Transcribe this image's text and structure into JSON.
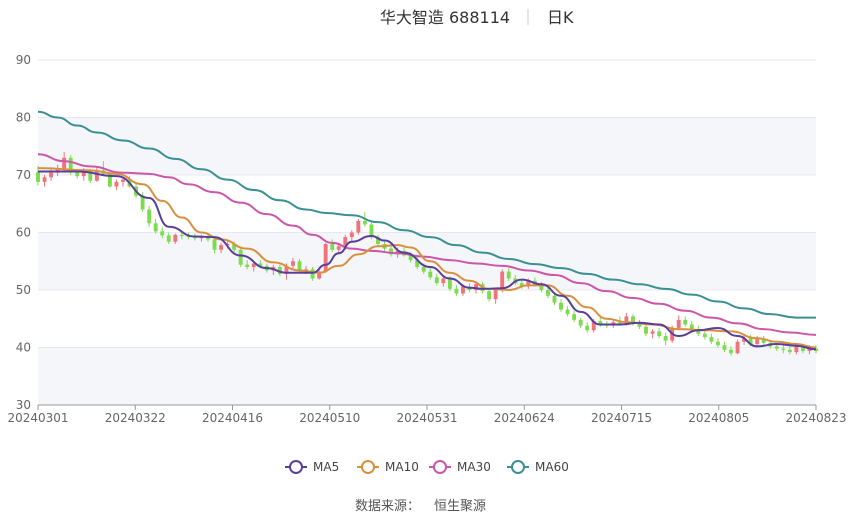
{
  "header": {
    "title": "华大智造 688114",
    "period": "日K"
  },
  "source": {
    "label": "数据来源：",
    "value": "恒生聚源"
  },
  "colors": {
    "up": "#f0737b",
    "down": "#7cdc4d",
    "grid": "#e6e9f0",
    "band": "#f5f6fa",
    "ma5": "#5a3e9b",
    "ma10": "#d8903f",
    "ma30": "#cc57a9",
    "ma60": "#3a9093"
  },
  "chart_data": {
    "type": "candlestick",
    "ylim": [
      30,
      90
    ],
    "yticks": [
      30,
      40,
      50,
      60,
      70,
      80,
      90
    ],
    "xtick_labels": [
      "20240301",
      "20240322",
      "20240416",
      "20240510",
      "20240531",
      "20240624",
      "20240715",
      "20240805",
      "20240823"
    ],
    "n_days": 120,
    "legend": [
      "MA5",
      "MA10",
      "MA30",
      "MA60"
    ],
    "ohlc": [
      [
        70.5,
        71.6,
        68.2,
        68.8
      ],
      [
        68.8,
        70.0,
        68.0,
        69.6
      ],
      [
        69.6,
        71.0,
        69.0,
        70.4
      ],
      [
        70.4,
        71.8,
        69.8,
        71.0
      ],
      [
        71.0,
        74.0,
        70.4,
        73.0
      ],
      [
        73.0,
        73.5,
        70.0,
        70.6
      ],
      [
        70.6,
        71.0,
        69.4,
        69.8
      ],
      [
        69.8,
        71.2,
        69.0,
        70.5
      ],
      [
        70.5,
        71.0,
        68.6,
        69.0
      ],
      [
        69.0,
        71.5,
        68.8,
        70.8
      ],
      [
        70.8,
        72.4,
        70.0,
        70.2
      ],
      [
        70.2,
        70.5,
        67.8,
        68.0
      ],
      [
        68.0,
        69.2,
        67.4,
        68.8
      ],
      [
        68.8,
        69.6,
        68.0,
        69.2
      ],
      [
        69.2,
        69.8,
        67.8,
        68.0
      ],
      [
        68.0,
        68.6,
        66.0,
        66.4
      ],
      [
        66.4,
        67.0,
        63.6,
        64.0
      ],
      [
        64.0,
        64.6,
        61.0,
        61.6
      ],
      [
        61.6,
        62.4,
        59.8,
        60.2
      ],
      [
        60.2,
        61.0,
        59.0,
        59.5
      ],
      [
        59.5,
        60.0,
        58.0,
        58.4
      ],
      [
        58.4,
        59.8,
        58.0,
        59.6
      ],
      [
        59.6,
        60.2,
        58.8,
        59.4
      ],
      [
        59.4,
        60.0,
        58.8,
        59.2
      ],
      [
        59.2,
        59.8,
        58.6,
        59.0
      ],
      [
        59.0,
        59.6,
        58.4,
        59.4
      ],
      [
        59.4,
        59.8,
        58.4,
        58.8
      ],
      [
        58.8,
        59.2,
        56.4,
        57.0
      ],
      [
        57.0,
        58.2,
        56.4,
        57.8
      ],
      [
        57.8,
        58.6,
        57.2,
        58.0
      ],
      [
        58.0,
        58.4,
        56.6,
        57.0
      ],
      [
        57.0,
        57.4,
        54.0,
        54.4
      ],
      [
        54.4,
        55.2,
        53.6,
        54.0
      ],
      [
        54.0,
        55.0,
        53.2,
        54.6
      ],
      [
        54.6,
        55.2,
        53.8,
        54.2
      ],
      [
        54.2,
        54.6,
        53.0,
        53.4
      ],
      [
        53.4,
        54.4,
        52.6,
        54.0
      ],
      [
        54.0,
        54.4,
        52.4,
        52.8
      ],
      [
        52.8,
        54.6,
        51.8,
        54.2
      ],
      [
        54.2,
        55.6,
        53.4,
        55.0
      ],
      [
        55.0,
        55.4,
        53.0,
        53.4
      ],
      [
        53.4,
        54.2,
        52.8,
        53.6
      ],
      [
        53.6,
        54.0,
        51.6,
        52.0
      ],
      [
        52.0,
        53.6,
        51.8,
        53.2
      ],
      [
        53.2,
        58.2,
        53.0,
        58.0
      ],
      [
        58.0,
        58.8,
        56.6,
        57.0
      ],
      [
        57.0,
        58.0,
        56.2,
        57.6
      ],
      [
        57.6,
        59.6,
        57.0,
        59.2
      ],
      [
        59.2,
        60.4,
        58.4,
        60.0
      ],
      [
        60.0,
        62.4,
        59.6,
        62.0
      ],
      [
        62.0,
        63.6,
        61.0,
        61.4
      ],
      [
        61.4,
        62.0,
        58.8,
        59.2
      ],
      [
        59.2,
        59.6,
        57.6,
        58.0
      ],
      [
        58.0,
        58.4,
        56.8,
        57.2
      ],
      [
        57.2,
        57.8,
        55.8,
        56.2
      ],
      [
        56.2,
        57.4,
        55.6,
        56.8
      ],
      [
        56.8,
        57.4,
        55.8,
        56.0
      ],
      [
        56.0,
        56.6,
        54.8,
        55.2
      ],
      [
        55.2,
        55.8,
        53.6,
        54.0
      ],
      [
        54.0,
        54.6,
        52.8,
        53.2
      ],
      [
        53.2,
        53.8,
        51.8,
        52.2
      ],
      [
        52.2,
        52.8,
        50.8,
        51.2
      ],
      [
        51.2,
        52.4,
        50.6,
        52.0
      ],
      [
        52.0,
        52.4,
        49.8,
        50.2
      ],
      [
        50.2,
        50.8,
        49.0,
        49.4
      ],
      [
        49.4,
        51.0,
        49.0,
        50.6
      ],
      [
        50.6,
        51.2,
        49.6,
        50.0
      ],
      [
        50.0,
        51.4,
        49.4,
        51.0
      ],
      [
        51.0,
        51.4,
        49.4,
        49.8
      ],
      [
        49.8,
        50.2,
        48.0,
        48.4
      ],
      [
        48.4,
        50.4,
        47.6,
        50.0
      ],
      [
        50.0,
        53.6,
        49.6,
        53.2
      ],
      [
        53.2,
        53.8,
        51.6,
        52.0
      ],
      [
        52.0,
        52.6,
        50.8,
        51.2
      ],
      [
        51.2,
        51.8,
        50.2,
        50.6
      ],
      [
        50.6,
        52.0,
        50.2,
        51.6
      ],
      [
        51.6,
        52.2,
        50.6,
        51.0
      ],
      [
        51.0,
        51.4,
        49.6,
        50.0
      ],
      [
        50.0,
        50.6,
        48.6,
        49.0
      ],
      [
        49.0,
        49.6,
        47.4,
        47.8
      ],
      [
        47.8,
        48.4,
        46.2,
        46.6
      ],
      [
        46.6,
        47.2,
        45.4,
        45.8
      ],
      [
        45.8,
        46.4,
        44.4,
        44.8
      ],
      [
        44.8,
        45.2,
        43.4,
        43.8
      ],
      [
        43.8,
        44.4,
        42.6,
        43.0
      ],
      [
        43.0,
        45.0,
        42.6,
        44.6
      ],
      [
        44.6,
        45.2,
        43.6,
        44.0
      ],
      [
        44.0,
        44.6,
        43.4,
        43.8
      ],
      [
        43.8,
        44.8,
        43.4,
        44.4
      ],
      [
        44.4,
        45.4,
        43.8,
        44.2
      ],
      [
        44.2,
        46.0,
        43.8,
        45.4
      ],
      [
        45.4,
        45.8,
        43.8,
        44.2
      ],
      [
        44.2,
        44.8,
        43.2,
        43.6
      ],
      [
        43.6,
        44.2,
        42.0,
        42.4
      ],
      [
        42.4,
        43.2,
        41.6,
        42.8
      ],
      [
        42.8,
        43.4,
        41.6,
        42.0
      ],
      [
        42.0,
        42.6,
        40.4,
        41.2
      ],
      [
        41.2,
        43.8,
        40.8,
        43.4
      ],
      [
        43.4,
        45.6,
        43.0,
        44.8
      ],
      [
        44.8,
        45.4,
        43.6,
        44.0
      ],
      [
        44.0,
        44.6,
        42.8,
        43.2
      ],
      [
        43.2,
        43.8,
        42.0,
        42.4
      ],
      [
        42.4,
        43.0,
        41.4,
        41.8
      ],
      [
        41.8,
        42.4,
        40.6,
        41.0
      ],
      [
        41.0,
        41.6,
        40.0,
        40.4
      ],
      [
        40.4,
        41.0,
        39.2,
        39.6
      ],
      [
        39.6,
        40.2,
        38.6,
        39.0
      ],
      [
        39.0,
        41.4,
        38.8,
        41.0
      ],
      [
        41.0,
        42.2,
        40.4,
        41.6
      ],
      [
        41.6,
        42.2,
        40.2,
        40.6
      ],
      [
        40.6,
        42.0,
        40.2,
        41.6
      ],
      [
        41.6,
        42.0,
        40.4,
        40.8
      ],
      [
        40.8,
        41.2,
        39.8,
        40.2
      ],
      [
        40.2,
        40.8,
        39.4,
        39.8
      ],
      [
        39.8,
        40.4,
        39.0,
        39.6
      ],
      [
        39.6,
        40.2,
        38.8,
        39.2
      ],
      [
        39.2,
        40.6,
        38.8,
        40.2
      ],
      [
        40.2,
        40.6,
        39.0,
        39.4
      ],
      [
        39.4,
        40.4,
        38.8,
        39.8
      ],
      [
        39.8,
        40.4,
        39.0,
        39.4
      ]
    ],
    "ma5": [
      [
        0,
        70.6
      ],
      [
        6,
        70.6
      ],
      [
        12,
        69.8
      ],
      [
        17,
        66.0
      ],
      [
        20,
        61.0
      ],
      [
        24,
        59.3
      ],
      [
        27,
        59.2
      ],
      [
        31,
        56.0
      ],
      [
        35,
        53.8
      ],
      [
        38,
        53.0
      ],
      [
        42,
        53.0
      ],
      [
        44,
        54.4
      ],
      [
        46,
        56.4
      ],
      [
        48,
        58.4
      ],
      [
        51,
        59.4
      ],
      [
        53,
        58.6
      ],
      [
        56,
        56.5
      ],
      [
        60,
        54.0
      ],
      [
        63,
        52.0
      ],
      [
        66,
        50.4
      ],
      [
        68,
        50.2
      ],
      [
        71,
        50.3
      ],
      [
        74,
        51.8
      ],
      [
        77,
        51.0
      ],
      [
        80,
        49.0
      ],
      [
        83,
        46.2
      ],
      [
        86,
        44.0
      ],
      [
        89,
        44.0
      ],
      [
        92,
        44.3
      ],
      [
        95,
        44.0
      ],
      [
        98,
        42.0
      ],
      [
        101,
        43.0
      ],
      [
        104,
        43.4
      ],
      [
        107,
        42.0
      ],
      [
        110,
        40.2
      ],
      [
        113,
        40.6
      ],
      [
        116,
        40.3
      ],
      [
        119,
        39.7
      ]
    ],
    "ma10": [
      [
        0,
        71.2
      ],
      [
        8,
        70.8
      ],
      [
        12,
        70.2
      ],
      [
        16,
        68.4
      ],
      [
        19,
        65.5
      ],
      [
        22,
        62.6
      ],
      [
        25,
        60.0
      ],
      [
        28,
        58.8
      ],
      [
        32,
        57.2
      ],
      [
        36,
        54.8
      ],
      [
        40,
        53.4
      ],
      [
        43,
        53.0
      ],
      [
        46,
        54.2
      ],
      [
        49,
        56.2
      ],
      [
        52,
        57.6
      ],
      [
        55,
        57.8
      ],
      [
        57,
        57.4
      ],
      [
        60,
        55.0
      ],
      [
        63,
        53.0
      ],
      [
        66,
        51.6
      ],
      [
        69,
        50.2
      ],
      [
        72,
        50.0
      ],
      [
        75,
        50.8
      ],
      [
        78,
        50.8
      ],
      [
        81,
        49.0
      ],
      [
        84,
        47.0
      ],
      [
        87,
        45.0
      ],
      [
        90,
        44.4
      ],
      [
        94,
        44.0
      ],
      [
        98,
        43.2
      ],
      [
        102,
        43.0
      ],
      [
        106,
        42.8
      ],
      [
        110,
        41.6
      ],
      [
        113,
        41.0
      ],
      [
        116,
        40.6
      ],
      [
        119,
        40.0
      ]
    ],
    "ma30": [
      [
        0,
        73.6
      ],
      [
        4,
        72.4
      ],
      [
        8,
        71.5
      ],
      [
        13,
        70.4
      ],
      [
        17,
        70.2
      ],
      [
        20,
        69.6
      ],
      [
        23,
        68.4
      ],
      [
        27,
        67.0
      ],
      [
        31,
        65.2
      ],
      [
        35,
        63.2
      ],
      [
        39,
        61.2
      ],
      [
        42,
        59.6
      ],
      [
        45,
        58.2
      ],
      [
        48,
        57.2
      ],
      [
        51,
        56.8
      ],
      [
        55,
        56.4
      ],
      [
        59,
        55.8
      ],
      [
        63,
        55.2
      ],
      [
        67,
        54.6
      ],
      [
        71,
        54.2
      ],
      [
        75,
        53.4
      ],
      [
        79,
        52.6
      ],
      [
        83,
        51.2
      ],
      [
        87,
        49.8
      ],
      [
        91,
        48.6
      ],
      [
        95,
        47.6
      ],
      [
        99,
        46.4
      ],
      [
        103,
        45.2
      ],
      [
        107,
        44.2
      ],
      [
        111,
        43.2
      ],
      [
        115,
        42.6
      ],
      [
        119,
        42.2
      ]
    ],
    "ma60": [
      [
        0,
        81.0
      ],
      [
        3,
        80.0
      ],
      [
        6,
        78.6
      ],
      [
        9,
        77.4
      ],
      [
        13,
        76.0
      ],
      [
        17,
        74.6
      ],
      [
        21,
        72.8
      ],
      [
        25,
        71.0
      ],
      [
        29,
        69.2
      ],
      [
        33,
        67.4
      ],
      [
        37,
        65.6
      ],
      [
        41,
        64.0
      ],
      [
        44,
        63.4
      ],
      [
        48,
        63.0
      ],
      [
        52,
        61.8
      ],
      [
        56,
        60.4
      ],
      [
        60,
        59.2
      ],
      [
        64,
        57.8
      ],
      [
        68,
        56.5
      ],
      [
        72,
        55.4
      ],
      [
        76,
        54.5
      ],
      [
        80,
        53.8
      ],
      [
        84,
        52.8
      ],
      [
        88,
        51.8
      ],
      [
        92,
        51.0
      ],
      [
        96,
        50.2
      ],
      [
        100,
        49.2
      ],
      [
        104,
        48.0
      ],
      [
        108,
        46.8
      ],
      [
        112,
        45.8
      ],
      [
        116,
        45.2
      ],
      [
        119,
        45.2
      ]
    ]
  }
}
